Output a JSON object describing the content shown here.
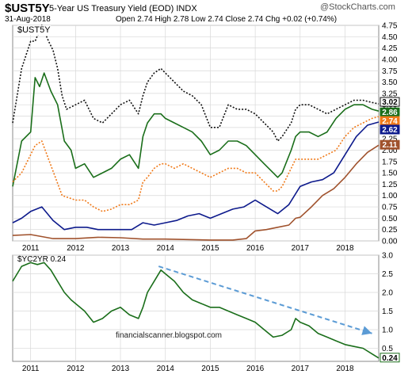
{
  "header": {
    "symbol": "$UST5Y",
    "subtitle": "5-Year US Treasury Yield (EOD)  INDX",
    "date": "31-Aug-2018",
    "ohlc": "Open 2.74  High 2.78  Low 2.74  Close 2.74  Chg +0.02 (+0.74%)",
    "brand": "@StockCharts.com"
  },
  "watermark": "financialscanner.blogspot.com",
  "colors": {
    "dotted_black": "#111111",
    "green": "#1a6e1a",
    "orange": "#f07a1a",
    "navy": "#0d1a8c",
    "brown": "#a0522d",
    "trend_arrow": "#5b9bd5"
  },
  "chart_data": [
    {
      "type": "line",
      "panel": "top",
      "title": "$UST5Y",
      "x_ticks": [
        "2011",
        "2012",
        "2013",
        "2014",
        "2015",
        "2016",
        "2017",
        "2018"
      ],
      "y_ticks": [
        "0.00",
        "0.25",
        "0.50",
        "0.75",
        "1.00",
        "1.25",
        "1.50",
        "1.75",
        "2.00",
        "2.25",
        "2.50",
        "2.75",
        "3.00",
        "3.25",
        "3.50",
        "3.75",
        "4.00",
        "4.25",
        "4.50",
        "4.75"
      ],
      "ylim": [
        0,
        4.75
      ],
      "xlim": [
        2010.6,
        2018.75
      ],
      "last_value_labels": [
        "3.02",
        "2.86",
        "2.74",
        "2.62",
        "2.11"
      ],
      "series": [
        {
          "color": "#111111",
          "style": "dotted",
          "x": [
            2010.6,
            2010.8,
            2011.0,
            2011.1,
            2011.25,
            2011.4,
            2011.5,
            2011.6,
            2011.7,
            2011.8,
            2012.0,
            2012.2,
            2012.4,
            2012.6,
            2012.8,
            2013.0,
            2013.2,
            2013.4,
            2013.5,
            2013.6,
            2013.75,
            2013.9,
            2014.0,
            2014.2,
            2014.4,
            2014.6,
            2014.8,
            2015.0,
            2015.2,
            2015.4,
            2015.6,
            2015.8,
            2016.0,
            2016.2,
            2016.4,
            2016.5,
            2016.6,
            2016.8,
            2016.9,
            2017.0,
            2017.2,
            2017.4,
            2017.6,
            2017.8,
            2018.0,
            2018.2,
            2018.4,
            2018.6,
            2018.75
          ],
          "values": [
            2.6,
            3.8,
            4.4,
            4.4,
            4.75,
            4.4,
            4.2,
            3.8,
            3.2,
            2.9,
            3.0,
            3.1,
            2.7,
            2.6,
            2.8,
            3.0,
            3.1,
            2.8,
            3.2,
            3.5,
            3.7,
            3.8,
            3.7,
            3.5,
            3.3,
            3.2,
            3.0,
            2.5,
            2.5,
            3.0,
            2.9,
            2.9,
            2.8,
            2.6,
            2.4,
            2.2,
            2.3,
            2.6,
            2.9,
            3.0,
            3.0,
            2.9,
            2.8,
            2.9,
            3.0,
            3.1,
            3.1,
            3.05,
            3.02
          ]
        },
        {
          "color": "#1a6e1a",
          "style": "solid",
          "x": [
            2010.6,
            2010.8,
            2011.0,
            2011.1,
            2011.2,
            2011.3,
            2011.45,
            2011.6,
            2011.75,
            2011.9,
            2012.0,
            2012.2,
            2012.4,
            2012.6,
            2012.8,
            2013.0,
            2013.2,
            2013.4,
            2013.5,
            2013.6,
            2013.75,
            2013.9,
            2014.0,
            2014.2,
            2014.4,
            2014.6,
            2014.8,
            2015.0,
            2015.2,
            2015.4,
            2015.6,
            2015.8,
            2016.0,
            2016.2,
            2016.4,
            2016.5,
            2016.6,
            2016.8,
            2016.9,
            2017.0,
            2017.2,
            2017.4,
            2017.6,
            2017.8,
            2018.0,
            2018.2,
            2018.4,
            2018.6,
            2018.75
          ],
          "values": [
            1.2,
            2.2,
            2.4,
            3.6,
            3.4,
            3.7,
            3.3,
            3.0,
            2.2,
            2.0,
            1.6,
            1.7,
            1.4,
            1.5,
            1.6,
            1.8,
            1.9,
            1.6,
            2.3,
            2.6,
            2.8,
            2.8,
            2.7,
            2.6,
            2.5,
            2.4,
            2.2,
            1.9,
            2.0,
            2.2,
            2.2,
            2.1,
            1.9,
            1.7,
            1.5,
            1.4,
            1.5,
            2.0,
            2.3,
            2.4,
            2.4,
            2.3,
            2.4,
            2.7,
            2.9,
            3.0,
            3.0,
            2.9,
            2.86
          ]
        },
        {
          "color": "#f07a1a",
          "style": "dotted",
          "x": [
            2010.6,
            2010.8,
            2011.0,
            2011.1,
            2011.25,
            2011.4,
            2011.55,
            2011.7,
            2011.85,
            2012.0,
            2012.2,
            2012.4,
            2012.6,
            2012.8,
            2013.0,
            2013.2,
            2013.4,
            2013.5,
            2013.6,
            2013.75,
            2013.9,
            2014.0,
            2014.2,
            2014.4,
            2014.6,
            2014.8,
            2015.0,
            2015.2,
            2015.4,
            2015.6,
            2015.8,
            2016.0,
            2016.2,
            2016.4,
            2016.5,
            2016.6,
            2016.8,
            2016.9,
            2017.0,
            2017.2,
            2017.4,
            2017.6,
            2017.8,
            2018.0,
            2018.2,
            2018.4,
            2018.6,
            2018.75
          ],
          "values": [
            1.3,
            1.5,
            1.9,
            2.1,
            2.2,
            1.8,
            1.4,
            1.0,
            0.95,
            0.9,
            0.9,
            0.75,
            0.65,
            0.7,
            0.8,
            0.8,
            0.9,
            1.3,
            1.4,
            1.6,
            1.7,
            1.7,
            1.6,
            1.7,
            1.6,
            1.5,
            1.4,
            1.5,
            1.6,
            1.6,
            1.5,
            1.5,
            1.3,
            1.1,
            1.1,
            1.2,
            1.6,
            1.8,
            1.8,
            1.8,
            1.8,
            1.9,
            2.0,
            2.3,
            2.5,
            2.6,
            2.7,
            2.74
          ]
        },
        {
          "color": "#0d1a8c",
          "style": "solid",
          "x": [
            2010.6,
            2010.8,
            2011.0,
            2011.25,
            2011.5,
            2011.75,
            2012.0,
            2012.25,
            2012.5,
            2012.75,
            2013.0,
            2013.25,
            2013.5,
            2013.75,
            2014.0,
            2014.25,
            2014.5,
            2014.75,
            2015.0,
            2015.25,
            2015.5,
            2015.75,
            2016.0,
            2016.25,
            2016.5,
            2016.75,
            2017.0,
            2017.25,
            2017.5,
            2017.75,
            2018.0,
            2018.25,
            2018.5,
            2018.75
          ],
          "values": [
            0.4,
            0.5,
            0.65,
            0.75,
            0.45,
            0.25,
            0.3,
            0.3,
            0.25,
            0.25,
            0.25,
            0.25,
            0.4,
            0.35,
            0.4,
            0.45,
            0.55,
            0.6,
            0.5,
            0.6,
            0.7,
            0.75,
            0.9,
            0.75,
            0.6,
            0.8,
            1.2,
            1.3,
            1.35,
            1.5,
            1.9,
            2.3,
            2.55,
            2.62
          ]
        },
        {
          "color": "#a0522d",
          "style": "solid",
          "x": [
            2010.6,
            2011.0,
            2011.5,
            2012.0,
            2012.5,
            2013.0,
            2013.5,
            2014.0,
            2014.5,
            2015.0,
            2015.5,
            2015.8,
            2016.0,
            2016.25,
            2016.5,
            2016.75,
            2016.9,
            2017.0,
            2017.25,
            2017.5,
            2017.75,
            2018.0,
            2018.25,
            2018.5,
            2018.75
          ],
          "values": [
            0.12,
            0.14,
            0.05,
            0.05,
            0.08,
            0.07,
            0.04,
            0.04,
            0.03,
            0.02,
            0.02,
            0.05,
            0.22,
            0.25,
            0.3,
            0.35,
            0.5,
            0.52,
            0.75,
            1.0,
            1.15,
            1.4,
            1.7,
            1.95,
            2.11
          ]
        }
      ]
    },
    {
      "type": "line",
      "panel": "bottom",
      "title": "$YC2YR 0.24",
      "x_ticks": [
        "2011",
        "2012",
        "2013",
        "2014",
        "2015",
        "2016",
        "2017",
        "2018"
      ],
      "y_ticks": [
        "0.5",
        "1.0",
        "1.5",
        "2.0",
        "2.5",
        "3.0"
      ],
      "ylim": [
        0.15,
        3.0
      ],
      "xlim": [
        2010.6,
        2018.75
      ],
      "last_value_label": "0.24",
      "series": [
        {
          "color": "#1a6e1a",
          "style": "solid",
          "x": [
            2010.6,
            2010.8,
            2011.0,
            2011.15,
            2011.3,
            2011.45,
            2011.6,
            2011.75,
            2011.9,
            2012.0,
            2012.2,
            2012.4,
            2012.6,
            2012.8,
            2013.0,
            2013.2,
            2013.4,
            2013.5,
            2013.6,
            2013.75,
            2013.9,
            2014.0,
            2014.2,
            2014.4,
            2014.6,
            2014.8,
            2015.0,
            2015.2,
            2015.4,
            2015.6,
            2015.8,
            2016.0,
            2016.2,
            2016.4,
            2016.6,
            2016.8,
            2016.9,
            2017.0,
            2017.2,
            2017.4,
            2017.6,
            2017.8,
            2018.0,
            2018.2,
            2018.4,
            2018.6,
            2018.75
          ],
          "values": [
            2.3,
            2.7,
            2.8,
            2.75,
            2.8,
            2.6,
            2.3,
            2.0,
            1.8,
            1.7,
            1.5,
            1.2,
            1.3,
            1.5,
            1.6,
            1.4,
            1.3,
            1.6,
            2.0,
            2.3,
            2.6,
            2.5,
            2.3,
            2.0,
            1.8,
            1.7,
            1.6,
            1.6,
            1.5,
            1.4,
            1.3,
            1.2,
            1.0,
            0.8,
            0.85,
            1.0,
            1.3,
            1.2,
            1.1,
            0.9,
            0.8,
            0.7,
            0.6,
            0.55,
            0.5,
            0.35,
            0.24
          ]
        }
      ],
      "annotation": {
        "type": "trend-arrow",
        "from": [
          2013.85,
          2.7
        ],
        "to": [
          2018.6,
          0.9
        ],
        "color": "#5b9bd5",
        "style": "dashed"
      }
    }
  ]
}
